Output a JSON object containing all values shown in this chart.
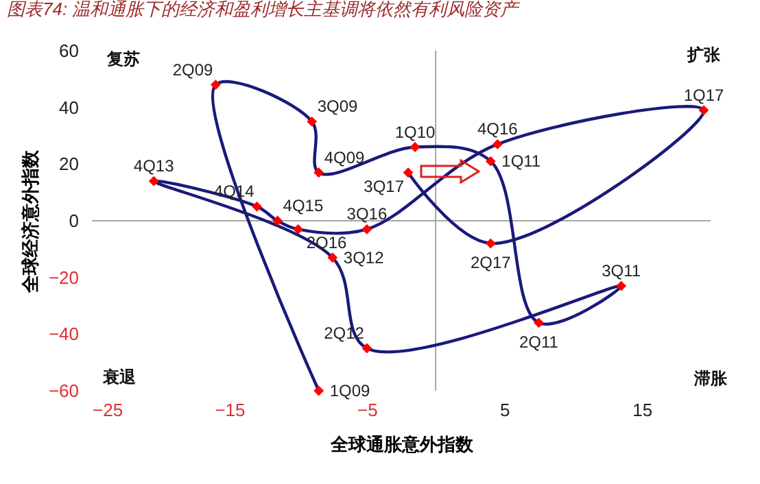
{
  "chart_data": {
    "type": "line",
    "title": "图表74: 温和通胀下的经济和盈利增长主基调将依然有利风险资产",
    "xlabel": "全球通胀意外指数",
    "ylabel": "全球经济意外指数",
    "xlim": [
      -25,
      20
    ],
    "ylim": [
      -60,
      60
    ],
    "xticks": [
      -25,
      -15,
      -5,
      5,
      15
    ],
    "yticks": [
      -60,
      -40,
      -20,
      0,
      20,
      40,
      60
    ],
    "series": [
      {
        "type": "line",
        "color": "#1a1a7a",
        "marker": "none",
        "x": [
          -8.5,
          -16,
          -9,
          -8.5,
          -1.5,
          4,
          7.5,
          13.5,
          -5,
          -7.5,
          -20.5,
          -13,
          -11.5,
          -10,
          -5,
          4.5,
          19.5,
          4,
          -2
        ],
        "values": [
          -60,
          48,
          35,
          17,
          26,
          21,
          -36,
          -23,
          -45,
          -13,
          14,
          5,
          0,
          -3,
          -3,
          27,
          39,
          -8,
          17
        ]
      },
      {
        "type": "scatter",
        "color": "#ff0000",
        "marker": "diamond",
        "x": [
          -8.5,
          -16,
          -9,
          -8.5,
          -1.5,
          4,
          7.5,
          13.5,
          -5,
          -7.5,
          -20.5,
          -13,
          -11.5,
          -10,
          -5,
          4.5,
          19.5,
          4,
          -2
        ],
        "values": [
          -60,
          48,
          35,
          17,
          26,
          21,
          -36,
          -23,
          -45,
          -13,
          14,
          5,
          0,
          -3,
          -3,
          27,
          39,
          -8,
          17
        ]
      }
    ],
    "annotations": [
      "复苏",
      "扩张",
      "衰退",
      "滞胀",
      {
        "text": "1Q09",
        "x": -8.5,
        "y": -60
      },
      {
        "text": "2Q09",
        "x": -16,
        "y": 48
      },
      {
        "text": "3Q09",
        "x": -9,
        "y": 35
      },
      {
        "text": "4Q09",
        "x": -8.5,
        "y": 17
      },
      {
        "text": "1Q10",
        "x": -1.5,
        "y": 26
      },
      {
        "text": "1Q11",
        "x": 4,
        "y": 21
      },
      {
        "text": "2Q11",
        "x": 7.5,
        "y": -36
      },
      {
        "text": "3Q11",
        "x": 13.5,
        "y": -23
      },
      {
        "text": "2Q12",
        "x": -5,
        "y": -45
      },
      {
        "text": "3Q12",
        "x": -7.5,
        "y": -13
      },
      {
        "text": "4Q13",
        "x": -20.5,
        "y": 14
      },
      {
        "text": "4Q14",
        "x": -13,
        "y": 5
      },
      {
        "text": "4Q15",
        "x": -11.5,
        "y": 0
      },
      {
        "text": "2Q16",
        "x": -10,
        "y": -3
      },
      {
        "text": "3Q16",
        "x": -5,
        "y": -3
      },
      {
        "text": "4Q16",
        "x": 4.5,
        "y": 27
      },
      {
        "text": "1Q17",
        "x": 19.5,
        "y": 39
      },
      {
        "text": "2Q17",
        "x": 4,
        "y": -8
      },
      {
        "text": "3Q17",
        "x": -2,
        "y": 17
      }
    ]
  }
}
